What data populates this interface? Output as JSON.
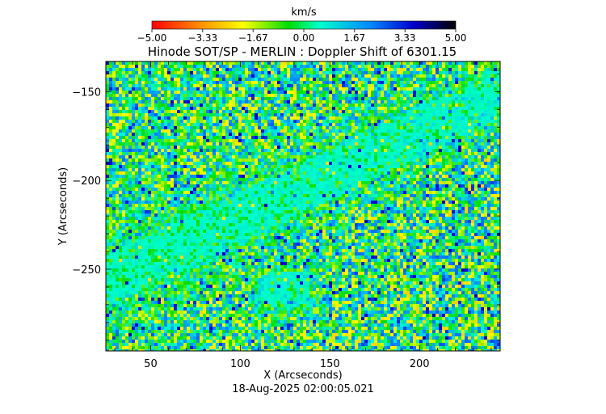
{
  "chart_data": {
    "type": "heatmap",
    "title": "Hinode SOT/SP - MERLIN : Doppler Shift of 6301.15",
    "xlabel": "X (Arcseconds)",
    "ylabel": "Y (Arcseconds)",
    "timestamp": "18-Aug-2025 02:00:05.021",
    "xlim": [
      25,
      245
    ],
    "ylim": [
      -296,
      -133
    ],
    "x_ticks": [
      50,
      100,
      150,
      200
    ],
    "y_ticks": [
      -150,
      -200,
      -250
    ],
    "x_tick_labels": [
      "50",
      "100",
      "150",
      "200"
    ],
    "y_tick_labels": [
      "−150",
      "−200",
      "−250"
    ],
    "colorbar": {
      "label": "km/s",
      "range": [
        -5.0,
        5.0
      ],
      "ticks": [
        -5.0,
        -3.33,
        -1.67,
        0.0,
        1.67,
        3.33,
        5.0
      ],
      "tick_labels": [
        "−5.00",
        "−3.33",
        "−1.67",
        "0.00",
        "1.67",
        "3.33",
        "5.00"
      ],
      "colormap": [
        "#ff0000",
        "#ff8800",
        "#ffff00",
        "#00dd00",
        "#00ffcc",
        "#0088ff",
        "#0000cc",
        "#000000"
      ]
    },
    "field_description_values": {
      "dominant_velocity_kms": 0.0,
      "range_kms": [
        -5.0,
        5.0
      ]
    }
  }
}
